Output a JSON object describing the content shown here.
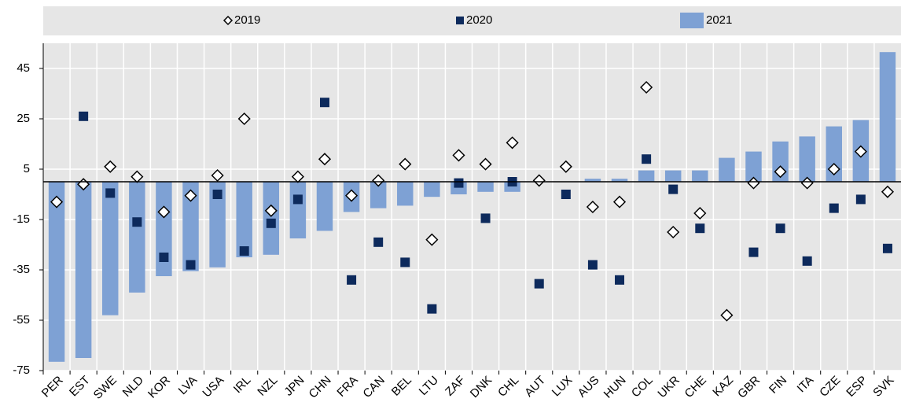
{
  "chart_data": {
    "type": "bar",
    "categories": [
      "PER",
      "EST",
      "SWE",
      "NLD",
      "KOR",
      "LVA",
      "USA",
      "IRL",
      "NZL",
      "JPN",
      "CHN",
      "FRA",
      "CAN",
      "BEL",
      "LTU",
      "ZAF",
      "DNK",
      "CHL",
      "AUT",
      "LUX",
      "AUS",
      "HUN",
      "COL",
      "UKR",
      "CHE",
      "KAZ",
      "GBR",
      "FIN",
      "ITA",
      "CZE",
      "ESP",
      "SVK"
    ],
    "series": [
      {
        "name": "2019",
        "marker": "diamond",
        "color": "#ffffff",
        "values": [
          -8,
          -1,
          6,
          2,
          -12,
          -5.5,
          2.5,
          25,
          -11.5,
          2,
          9,
          -5.5,
          0.5,
          7,
          -23,
          10.5,
          7,
          15.5,
          0.5,
          6,
          -10,
          -8,
          37.5,
          -20,
          -12.5,
          -53,
          -0.5,
          4,
          -0.5,
          5,
          12,
          -4
        ]
      },
      {
        "name": "2020",
        "marker": "square",
        "color": "#0d2a5c",
        "values": [
          null,
          26,
          -4.5,
          -16,
          -30,
          -33,
          -5,
          -27.5,
          -16.5,
          -7,
          31.5,
          -39,
          -24,
          -32,
          -50.5,
          -0.5,
          -14.5,
          0,
          -40.5,
          -5,
          -33,
          -39,
          9,
          -3,
          -18.5,
          null,
          -28,
          -18.5,
          -31.5,
          -10.5,
          -7,
          -26.5
        ]
      },
      {
        "name": "2021",
        "marker": "bar",
        "color": "#7ea1d4",
        "values": [
          -71.5,
          -70,
          -53,
          -44,
          -37.5,
          -35.5,
          -34,
          -30,
          -29,
          -22.5,
          -19.5,
          -12,
          -10.5,
          -9.5,
          -6,
          -5,
          -4,
          -4,
          null,
          null,
          1.2,
          1.2,
          4.5,
          4.5,
          4.5,
          9.5,
          12,
          16,
          18,
          22,
          24.5,
          51.5
        ]
      }
    ],
    "ylim": [
      -75,
      55
    ],
    "yticks": [
      -75,
      -55,
      -35,
      -15,
      5,
      25,
      45
    ],
    "grid": true
  }
}
